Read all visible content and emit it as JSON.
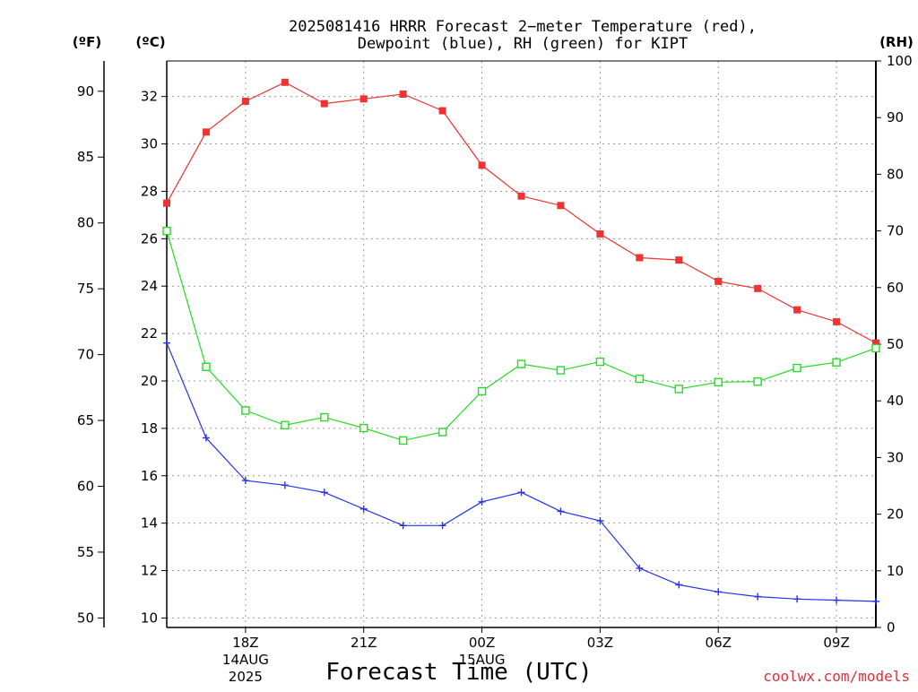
{
  "header": {
    "title_line1": "2025081416 HRRR Forecast 2−meter Temperature (red),",
    "title_line2": "Dewpoint (blue), RH (green) for KIPT"
  },
  "axes": {
    "unit_f": "(ºF)",
    "unit_c": "(ºC)",
    "unit_rh": "(RH)",
    "x_title": "Forecast Time (UTC)",
    "credit": "coolwx.com/models"
  },
  "chart_data": {
    "type": "line",
    "title": "2025081416 HRRR Forecast 2−meter Temperature (red), Dewpoint (blue), RH (green) for KIPT",
    "xlabel": "Forecast Time (UTC)",
    "x_hours": [
      0,
      1,
      2,
      3,
      4,
      5,
      6,
      7,
      8,
      9,
      10,
      11,
      12,
      13,
      14,
      15,
      16,
      17,
      18
    ],
    "x_range_hours": [
      0,
      18
    ],
    "x_ticks": [
      {
        "hour": 2,
        "label": "18Z",
        "sub1": "14AUG",
        "sub2": "2025"
      },
      {
        "hour": 5,
        "label": "21Z",
        "sub1": "",
        "sub2": ""
      },
      {
        "hour": 8,
        "label": "00Z",
        "sub1": "15AUG",
        "sub2": ""
      },
      {
        "hour": 11,
        "label": "03Z",
        "sub1": "",
        "sub2": ""
      },
      {
        "hour": 14,
        "label": "06Z",
        "sub1": "",
        "sub2": ""
      },
      {
        "hour": 17,
        "label": "09Z",
        "sub1": "",
        "sub2": ""
      }
    ],
    "y_left_c": {
      "label": "(ºC)",
      "range": [
        9.6,
        33.5
      ],
      "ticks": [
        10,
        12,
        14,
        16,
        18,
        20,
        22,
        24,
        26,
        28,
        30,
        32
      ]
    },
    "y_left_f": {
      "label": "(ºF)",
      "ticks": [
        50,
        55,
        60,
        65,
        70,
        75,
        80,
        85,
        90
      ]
    },
    "y_right_rh": {
      "label": "(RH)",
      "range": [
        0,
        100
      ],
      "ticks": [
        0,
        10,
        20,
        30,
        40,
        50,
        60,
        70,
        80,
        90,
        100
      ]
    },
    "grid": true,
    "series": [
      {
        "name": "Temperature",
        "axis": "c",
        "color": "#ee3333",
        "marker": "filled-square",
        "values": [
          27.5,
          30.5,
          31.8,
          32.6,
          31.7,
          31.9,
          32.1,
          31.4,
          29.1,
          27.8,
          27.4,
          26.2,
          25.2,
          25.1,
          24.2,
          23.9,
          23.0,
          22.5,
          21.6
        ]
      },
      {
        "name": "Dewpoint",
        "axis": "c",
        "color": "#2233ee",
        "marker": "plus",
        "values": [
          21.6,
          17.6,
          15.8,
          15.6,
          15.3,
          14.6,
          13.9,
          13.9,
          14.9,
          15.3,
          14.5,
          14.1,
          12.1,
          11.4,
          11.1,
          10.9,
          10.8,
          10.75,
          10.7
        ]
      },
      {
        "name": "RH",
        "axis": "rh",
        "color": "#22dd22",
        "marker": "open-square",
        "values": [
          70,
          46,
          38.3,
          35.7,
          37.1,
          35.2,
          33.0,
          34.5,
          41.7,
          46.5,
          45.4,
          46.9,
          43.9,
          42.1,
          43.3,
          43.4,
          45.8,
          46.8,
          49.3
        ]
      }
    ]
  }
}
